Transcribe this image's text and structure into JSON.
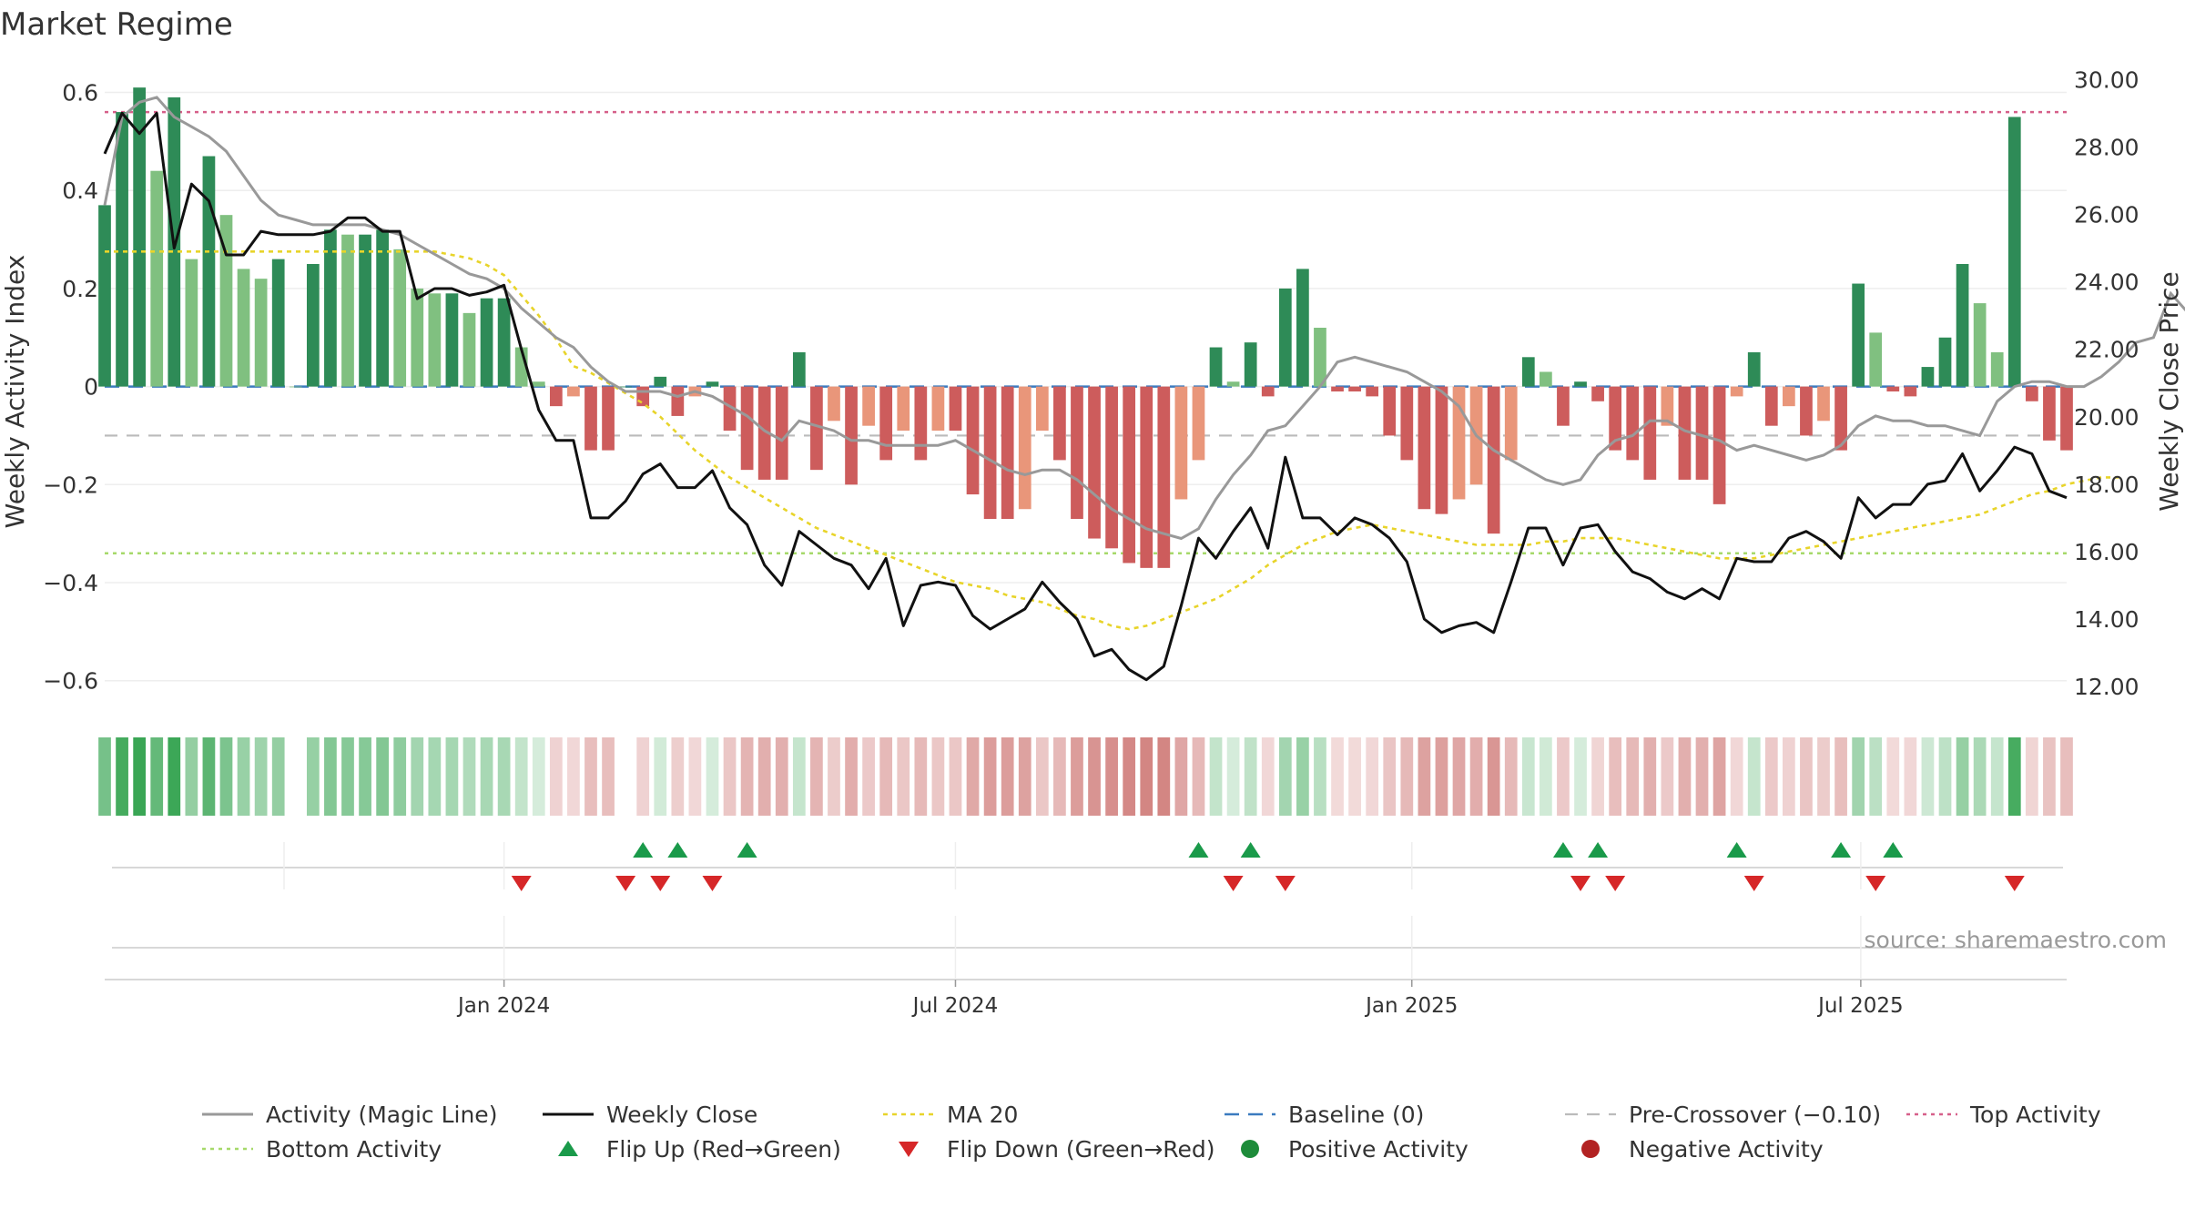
{
  "chart_data": {
    "type": "bar",
    "title": "Market Regime",
    "ylabel_left": "Weekly Activity Index",
    "ylabel_right": "Weekly Close Price",
    "left_ylim": [
      -0.66,
      0.64
    ],
    "right_ylim": [
      11.3,
      30.2
    ],
    "left_ticks": [
      "0.6",
      "0.4",
      "0.2",
      "0",
      "−0.2",
      "−0.4",
      "−0.6"
    ],
    "left_tick_values": [
      0.6,
      0.4,
      0.2,
      0,
      -0.2,
      -0.4,
      -0.6
    ],
    "right_ticks": [
      "30.00",
      "28.00",
      "26.00",
      "24.00",
      "22.00",
      "20.00",
      "18.00",
      "16.00",
      "14.00",
      "12.00"
    ],
    "right_tick_values": [
      30,
      28,
      26,
      24,
      22,
      20,
      18,
      16,
      14,
      12
    ],
    "x_range": [
      "2023-07-24",
      "2025-09-22"
    ],
    "x_ticks": [
      {
        "label": "Jan 2024",
        "date": "2024-01-01"
      },
      {
        "label": "Jul 2024",
        "date": "2024-07-01"
      },
      {
        "label": "Jan 2025",
        "date": "2025-01-01"
      },
      {
        "label": "Jul 2025",
        "date": "2025-07-01"
      }
    ],
    "reference_lines": {
      "top_activity": 0.56,
      "baseline": 0,
      "pre_crossover": -0.1,
      "bottom_activity": -0.34
    },
    "weeks": {
      "start": "2023-07-24",
      "activity": [
        0.37,
        0.56,
        0.61,
        0.44,
        0.59,
        0.26,
        0.47,
        0.35,
        0.24,
        0.22,
        0.26,
        0.0,
        0.25,
        0.32,
        0.31,
        0.31,
        0.32,
        0.28,
        0.2,
        0.19,
        0.19,
        0.15,
        0.18,
        0.18,
        0.08,
        0.01,
        -0.04,
        -0.02,
        -0.13,
        -0.13,
        0.0,
        -0.04,
        0.02,
        -0.06,
        -0.02,
        0.01,
        -0.09,
        -0.17,
        -0.19,
        -0.19,
        0.07,
        -0.17,
        -0.07,
        -0.2,
        -0.08,
        -0.15,
        -0.09,
        -0.15,
        -0.09,
        -0.09,
        -0.22,
        -0.27,
        -0.27,
        -0.25,
        -0.09,
        -0.15,
        -0.27,
        -0.31,
        -0.33,
        -0.36,
        -0.37,
        -0.37,
        -0.23,
        -0.15,
        0.08,
        0.01,
        0.09,
        -0.02,
        0.2,
        0.24,
        0.12,
        -0.01,
        -0.01,
        -0.02,
        -0.1,
        -0.15,
        -0.25,
        -0.26,
        -0.23,
        -0.2,
        -0.3,
        -0.15,
        0.06,
        0.03,
        -0.08,
        0.01,
        -0.03,
        -0.13,
        -0.15,
        -0.19,
        -0.08,
        -0.19,
        -0.19,
        -0.24,
        -0.02,
        0.07,
        -0.08,
        -0.04,
        -0.1,
        -0.07,
        -0.13,
        0.21,
        0.11,
        -0.01,
        -0.02,
        0.04,
        0.1,
        0.25,
        0.17,
        0.07,
        0.55,
        -0.03,
        -0.11,
        -0.13
      ],
      "close": [
        27.8,
        29.0,
        28.4,
        29.0,
        25.0,
        26.9,
        26.4,
        24.8,
        24.8,
        25.5,
        25.4,
        25.4,
        25.4,
        25.5,
        25.9,
        25.9,
        25.5,
        25.5,
        23.5,
        23.8,
        23.8,
        23.6,
        23.7,
        23.9,
        22.0,
        20.2,
        19.3,
        19.3,
        17.0,
        17.0,
        17.5,
        18.3,
        18.6,
        17.9,
        17.9,
        18.4,
        17.3,
        16.8,
        15.6,
        15.0,
        16.6,
        16.2,
        15.8,
        15.6,
        14.9,
        15.8,
        13.8,
        15.0,
        15.1,
        15.0,
        14.1,
        13.7,
        14.0,
        14.3,
        15.1,
        14.5,
        14.0,
        12.9,
        13.1,
        12.5,
        12.2,
        12.6,
        14.4,
        16.4,
        15.8,
        16.6,
        17.3,
        16.1,
        18.8,
        17.0,
        17.0,
        16.5,
        17.0,
        16.8,
        16.4,
        15.7,
        14.0,
        13.6,
        13.8,
        13.9,
        13.6,
        15.1,
        16.7,
        16.7,
        15.6,
        16.7,
        16.8,
        16.0,
        15.4,
        15.2,
        14.8,
        14.6,
        14.9,
        14.6,
        15.8,
        15.7,
        15.7,
        16.4,
        16.6,
        16.3,
        15.8,
        17.6,
        17.0,
        17.4,
        17.4,
        18.0,
        18.1,
        18.9,
        17.8,
        18.4,
        19.1,
        18.9,
        17.8,
        17.6
      ],
      "magic_line": [
        0.37,
        0.55,
        0.58,
        0.59,
        0.55,
        0.53,
        0.51,
        0.48,
        0.43,
        0.38,
        0.35,
        0.34,
        0.33,
        0.33,
        0.33,
        0.33,
        0.32,
        0.31,
        0.29,
        0.27,
        0.25,
        0.23,
        0.22,
        0.2,
        0.16,
        0.13,
        0.1,
        0.08,
        0.04,
        0.01,
        -0.01,
        -0.01,
        -0.01,
        -0.02,
        -0.01,
        -0.02,
        -0.04,
        -0.06,
        -0.09,
        -0.11,
        -0.07,
        -0.08,
        -0.09,
        -0.11,
        -0.11,
        -0.12,
        -0.12,
        -0.12,
        -0.12,
        -0.11,
        -0.13,
        -0.15,
        -0.17,
        -0.18,
        -0.17,
        -0.17,
        -0.19,
        -0.22,
        -0.25,
        -0.27,
        -0.29,
        -0.3,
        -0.31,
        -0.29,
        -0.23,
        -0.18,
        -0.14,
        -0.09,
        -0.08,
        -0.04,
        0.0,
        0.05,
        0.06,
        0.05,
        0.04,
        0.03,
        0.01,
        -0.01,
        -0.04,
        -0.1,
        -0.13,
        -0.15,
        -0.17,
        -0.19,
        -0.2,
        -0.19,
        -0.14,
        -0.11,
        -0.1,
        -0.07,
        -0.07,
        -0.09,
        -0.1,
        -0.11,
        -0.13,
        -0.12,
        -0.13,
        -0.14,
        -0.15,
        -0.14,
        -0.12,
        -0.08,
        -0.06,
        -0.07,
        -0.07,
        -0.08,
        -0.08,
        -0.09,
        -0.1,
        -0.03,
        0.0,
        0.01,
        0.01,
        0.0,
        0.0,
        0.02,
        0.05,
        0.09,
        0.1,
        0.19,
        0.15,
        0.09,
        0.04
      ],
      "ma20": [
        24.9,
        24.9,
        24.9,
        24.9,
        24.9,
        24.9,
        24.9,
        24.9,
        24.9,
        24.9,
        24.9,
        24.9,
        24.9,
        24.9,
        24.9,
        24.9,
        24.9,
        24.9,
        24.9,
        24.9,
        24.8,
        24.7,
        24.5,
        24.2,
        23.6,
        23.0,
        22.3,
        21.5,
        21.3,
        21.0,
        20.7,
        20.4,
        20.0,
        19.5,
        19.0,
        18.6,
        18.2,
        17.9,
        17.6,
        17.3,
        17.0,
        16.7,
        16.5,
        16.3,
        16.1,
        15.9,
        15.7,
        15.5,
        15.3,
        15.1,
        15.0,
        14.9,
        14.7,
        14.6,
        14.5,
        14.3,
        14.1,
        14.0,
        13.8,
        13.7,
        13.8,
        14.0,
        14.2,
        14.4,
        14.6,
        14.9,
        15.2,
        15.6,
        15.9,
        16.2,
        16.4,
        16.6,
        16.7,
        16.8,
        16.7,
        16.6,
        16.5,
        16.4,
        16.3,
        16.2,
        16.2,
        16.2,
        16.2,
        16.3,
        16.3,
        16.4,
        16.4,
        16.4,
        16.3,
        16.2,
        16.1,
        16.0,
        15.9,
        15.8,
        15.8,
        15.8,
        15.9,
        16.0,
        16.1,
        16.2,
        16.3,
        16.4,
        16.5,
        16.6,
        16.7,
        16.8,
        16.9,
        17.0,
        17.1,
        17.3,
        17.5,
        17.7,
        17.8,
        18.0,
        18.1,
        18.2,
        18.2
      ]
    },
    "flip_up_dates": [
      "2024-02-26",
      "2024-03-11",
      "2024-04-08",
      "2024-10-07",
      "2024-10-28",
      "2025-03-03",
      "2025-03-17",
      "2025-05-12",
      "2025-06-23",
      "2025-07-14"
    ],
    "flip_down_dates": [
      "2024-01-08",
      "2024-02-19",
      "2024-03-04",
      "2024-03-25",
      "2024-10-21",
      "2024-11-11",
      "2025-03-10",
      "2025-03-24",
      "2025-05-19",
      "2025-07-07",
      "2025-09-01"
    ],
    "source_note": "source: sharemaestro.com",
    "legend": [
      {
        "key": "magic",
        "label": "Activity (Magic Line)"
      },
      {
        "key": "close",
        "label": "Weekly Close"
      },
      {
        "key": "ma20",
        "label": "MA 20"
      },
      {
        "key": "baseline",
        "label": "Baseline (0)"
      },
      {
        "key": "precross",
        "label": "Pre-Crossover (−0.10)"
      },
      {
        "key": "top",
        "label": "Top Activity"
      },
      {
        "key": "bottom",
        "label": "Bottom Activity"
      },
      {
        "key": "flipup",
        "label": "Flip Up (Red→Green)"
      },
      {
        "key": "flipdown",
        "label": "Flip Down (Green→Red)"
      },
      {
        "key": "pos",
        "label": "Positive Activity"
      },
      {
        "key": "neg",
        "label": "Negative Activity"
      }
    ],
    "colors": {
      "positive_strong": "#2e8b57",
      "positive_light": "#80c080",
      "negative_strong": "#cd5c5c",
      "negative_light": "#e9967a",
      "close_line": "#111111",
      "magic_line": "#999999",
      "ma20": "#e8d42a",
      "top_activity": "#d6608a",
      "bottom_activity": "#a6d96a",
      "baseline": "#3b7bbf",
      "pre_crossover": "#bbbbbb",
      "flip_up": "#1a9a4a",
      "flip_down": "#d62728",
      "positive_marker": "#1e8c3a",
      "negative_marker": "#b22222"
    }
  }
}
